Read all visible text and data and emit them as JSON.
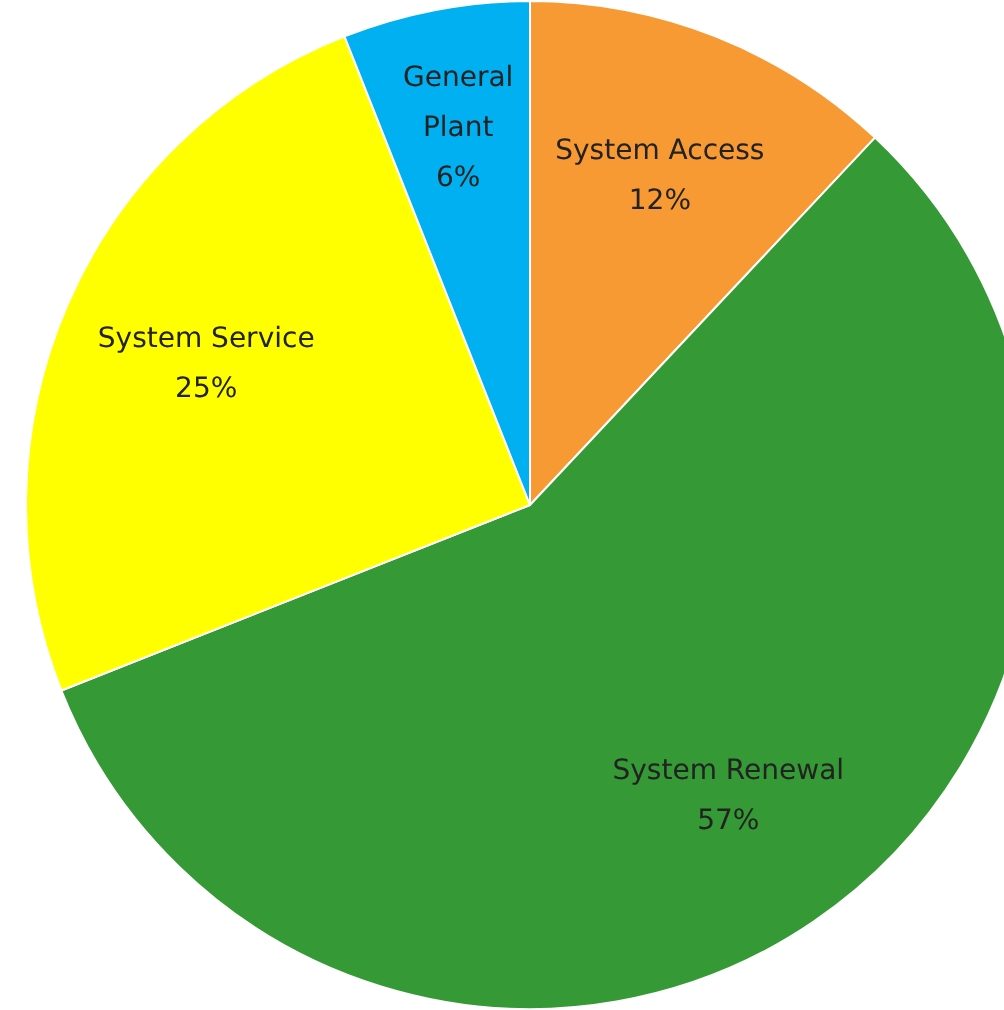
{
  "chart_data": {
    "type": "pie",
    "categories": [
      "System Access",
      "System Renewal",
      "System Service",
      "General Plant"
    ],
    "values": [
      12,
      57,
      25,
      6
    ],
    "colors": [
      "#f79a34",
      "#359a35",
      "#ffff00",
      "#00b0f0"
    ],
    "value_labels": [
      "12%",
      "57%",
      "25%",
      "6%"
    ],
    "legend": false
  }
}
